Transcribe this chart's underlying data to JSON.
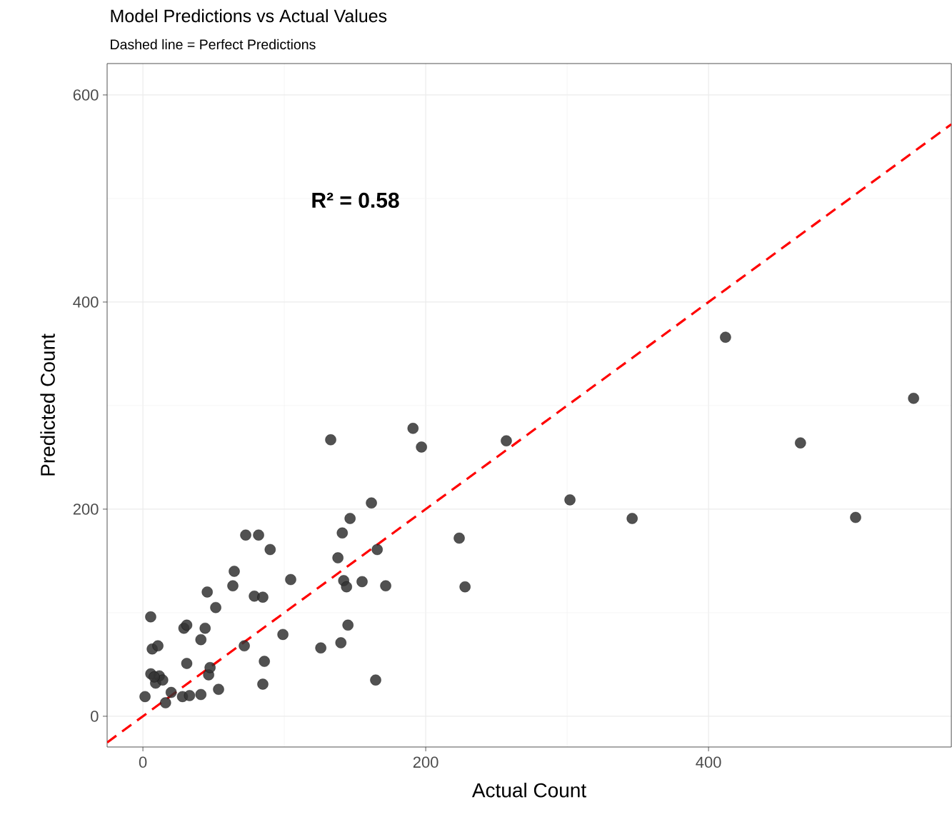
{
  "chart_data": {
    "type": "scatter",
    "title": "Model Predictions vs Actual Values",
    "subtitle": "Dashed line = Perfect Predictions",
    "xlabel": "Actual Count",
    "ylabel": "Predicted Count",
    "annotations": [
      "R² = 0.58"
    ],
    "xlim": [
      -25.3,
      571.7
    ],
    "ylim": [
      -29.7,
      630.3
    ],
    "xticks": [
      0,
      200,
      400
    ],
    "yticks": [
      0,
      200,
      400,
      600
    ],
    "grid": true,
    "marker": "circle",
    "series": [
      {
        "color": "#333333",
        "x": [
          1.5,
          5.5,
          6.6,
          10.6,
          5.6,
          9,
          11.6,
          14,
          8,
          16,
          20,
          28,
          29,
          31,
          31,
          33,
          41,
          41,
          44,
          45.5,
          46.5,
          47.5,
          51.5,
          53.5,
          63.6,
          64.6,
          71.7,
          72.7,
          78.8,
          81.8,
          84.8,
          84.8,
          85.9,
          90,
          99,
          104.5,
          125.8,
          132.8,
          137.9,
          140,
          141,
          142,
          144,
          145,
          146.5,
          155,
          161.6,
          164.6,
          165.7,
          171.7,
          191,
          197,
          223.7,
          227.8,
          257,
          302,
          346,
          412,
          465,
          504,
          545
        ],
        "values": [
          19,
          96,
          65,
          68,
          41,
          32,
          39,
          35,
          38,
          13,
          23,
          19,
          85,
          88,
          51,
          20,
          21,
          74,
          85,
          120,
          40,
          47,
          105,
          26,
          126,
          140,
          68,
          175,
          116,
          175,
          115,
          31,
          53,
          161,
          79,
          132,
          66,
          267,
          153,
          71,
          177,
          131,
          125,
          88,
          191,
          130,
          206,
          35,
          161,
          126,
          278,
          260,
          172,
          125,
          266,
          209,
          191,
          366,
          264,
          192,
          307
        ]
      },
      {
        "type": "line",
        "color": "#ff0000",
        "line_style": "dashed",
        "marker": "none",
        "x": [
          -25.3,
          571.7
        ],
        "values": [
          -25.3,
          571.7
        ]
      }
    ]
  }
}
